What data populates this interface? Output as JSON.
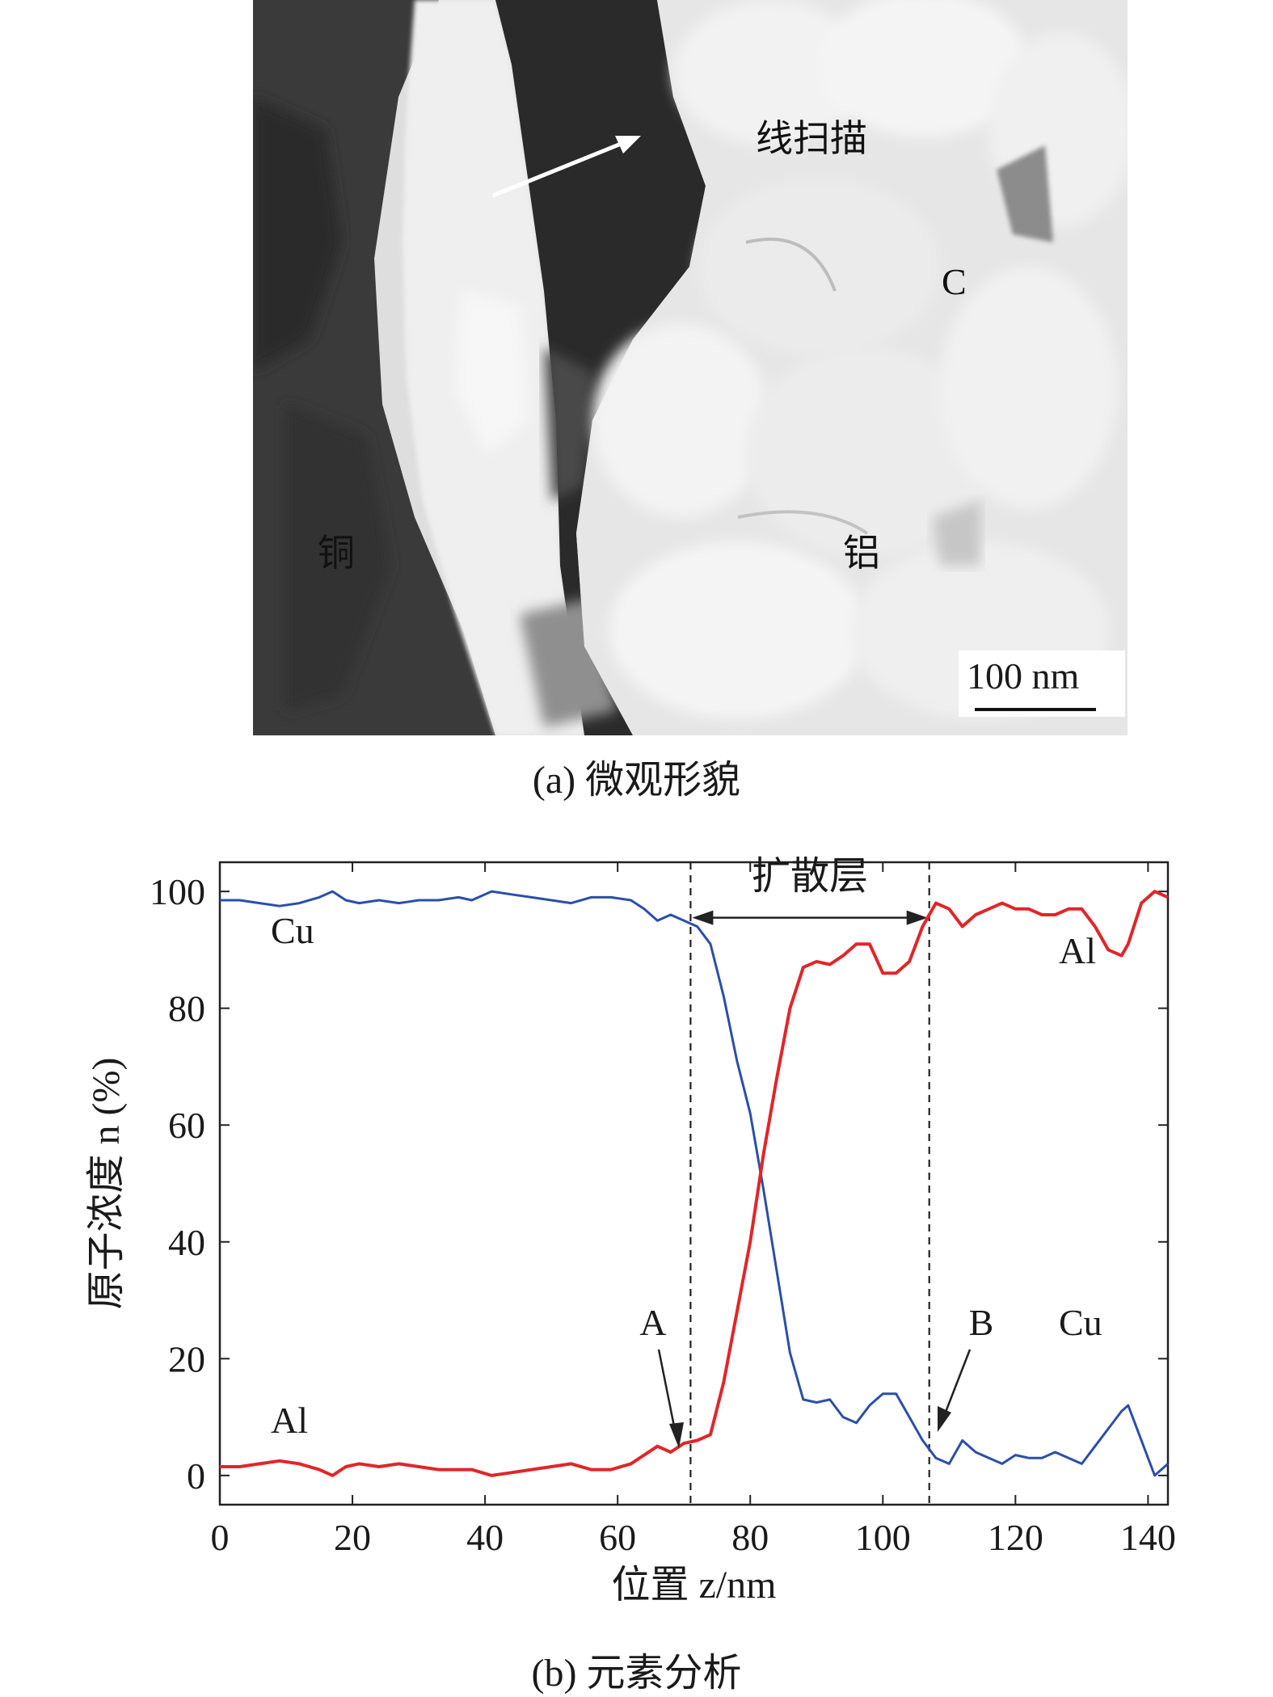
{
  "panel_a": {
    "labels": {
      "line_scan": "线扫描",
      "carbon": "C",
      "copper": "铜",
      "aluminum": "铝"
    },
    "scale_bar": "100 nm",
    "caption": "(a) 微观形貌"
  },
  "panel_b": {
    "caption": "(b) 元素分析"
  },
  "chart_data": {
    "type": "line",
    "xlabel": "位置 z/nm",
    "ylabel": "原子浓度 n (%)",
    "xlim": [
      0,
      143
    ],
    "ylim": [
      -5,
      105
    ],
    "xticks": [
      "0",
      "20",
      "40",
      "60",
      "80",
      "100",
      "120",
      "140"
    ],
    "yticks": [
      "0",
      "20",
      "40",
      "60",
      "80",
      "100"
    ],
    "grid": false,
    "series": [
      {
        "name": "Cu",
        "color": "#2b4fa8",
        "x": [
          0,
          3,
          6,
          9,
          12,
          15,
          17,
          19,
          21,
          24,
          27,
          30,
          33,
          36,
          38,
          41,
          44,
          47,
          50,
          53,
          56,
          59,
          62,
          64,
          66,
          68,
          70,
          72,
          74,
          76,
          78,
          80,
          82,
          84,
          86,
          88,
          90,
          92,
          94,
          96,
          98,
          100,
          102,
          104,
          106,
          108,
          110,
          112,
          114,
          116,
          118,
          120,
          122,
          124,
          126,
          128,
          130,
          132,
          134,
          136,
          137,
          139,
          141,
          143
        ],
        "y": [
          98.5,
          98.5,
          98,
          97.5,
          98,
          99,
          100,
          98.5,
          98,
          98.5,
          98,
          98.5,
          98.5,
          99,
          98.5,
          100,
          99.5,
          99,
          98.5,
          98,
          99,
          99,
          98.5,
          97,
          95,
          96,
          95,
          94,
          91,
          82,
          71,
          62,
          49,
          35,
          21,
          13,
          12.5,
          13,
          10,
          9,
          12,
          14,
          14,
          10,
          6,
          3,
          2,
          6,
          4,
          3,
          2,
          3.5,
          3,
          3,
          4,
          3,
          2,
          5,
          8,
          11,
          12,
          6,
          0,
          2
        ]
      },
      {
        "name": "Al",
        "color": "#e0262a",
        "x": [
          0,
          3,
          6,
          9,
          12,
          15,
          17,
          19,
          21,
          24,
          27,
          30,
          33,
          36,
          38,
          41,
          44,
          47,
          50,
          53,
          56,
          59,
          62,
          64,
          66,
          68,
          70,
          72,
          74,
          76,
          78,
          80,
          82,
          84,
          86,
          88,
          90,
          92,
          94,
          96,
          98,
          100,
          102,
          104,
          106,
          108,
          110,
          112,
          114,
          116,
          118,
          120,
          122,
          124,
          126,
          128,
          130,
          132,
          134,
          136,
          137,
          139,
          141,
          143
        ],
        "y": [
          1.5,
          1.5,
          2,
          2.5,
          2,
          1,
          0,
          1.5,
          2,
          1.5,
          2,
          1.5,
          1,
          1,
          1,
          0,
          0.5,
          1,
          1.5,
          2,
          1,
          1,
          2,
          3.5,
          5,
          4,
          5.5,
          6,
          7,
          16,
          28,
          40,
          55,
          68,
          80,
          87,
          88,
          87.5,
          89,
          91,
          91,
          86,
          86,
          88,
          94,
          98,
          97,
          94,
          96,
          97,
          98,
          97,
          97,
          96,
          96,
          97,
          97,
          94,
          90,
          89,
          91,
          98,
          100,
          99
        ]
      }
    ],
    "series_labels": [
      "Cu",
      "Al",
      "Al",
      "Cu"
    ],
    "annotations": {
      "layer": "扩散层",
      "point_a": "A",
      "point_b": "B",
      "boundary_x": [
        71,
        107
      ]
    }
  }
}
